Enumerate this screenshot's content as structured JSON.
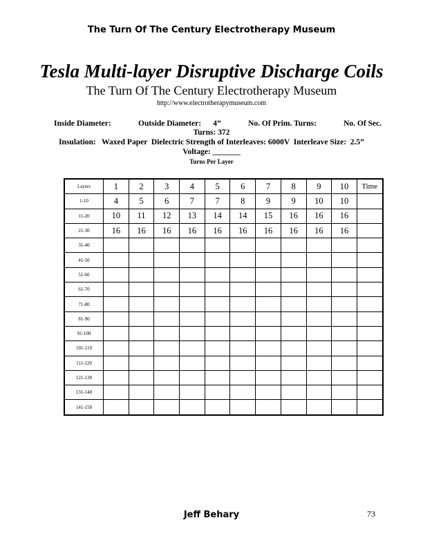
{
  "header": "The Turn Of The Century Electrotherapy Museum",
  "title": "Tesla Multi-layer Disruptive Discharge Coils",
  "subtitle": "The Turn Of The Century Electrotherapy Museum",
  "url": "http://www.electrotherapymuseum.com",
  "specs": {
    "inside_diameter": "Inside Diameter:",
    "outside_diameter": "Outside Diameter:      4”",
    "prim_turns": "No. Of Prim. Turns:",
    "sec_turns_a": "No. Of Sec.",
    "sec_turns_b": "Turns:  372",
    "insulation": "Insulation:   Waxed Paper  Dielectric Strength of Interleaves: 6000V  Interleave Size:  2.5”",
    "voltage": "Voltage: _______",
    "table_caption": "Turns Per Layer"
  },
  "table": {
    "header": [
      "Layers",
      "1",
      "2",
      "3",
      "4",
      "5",
      "6",
      "7",
      "8",
      "9",
      "10",
      "Time"
    ],
    "rows": [
      [
        "1-10",
        "4",
        "5",
        "6",
        "7",
        "7",
        "8",
        "9",
        "9",
        "10",
        "10",
        ""
      ],
      [
        "11-20",
        "10",
        "11",
        "12",
        "13",
        "14",
        "14",
        "15",
        "16",
        "16",
        "16",
        ""
      ],
      [
        "21-30",
        "16",
        "16",
        "16",
        "16",
        "16",
        "16",
        "16",
        "16",
        "16",
        "16",
        ""
      ],
      [
        "31-40",
        "",
        "",
        "",
        "",
        "",
        "",
        "",
        "",
        "",
        "",
        ""
      ],
      [
        "41-50",
        "",
        "",
        "",
        "",
        "",
        "",
        "",
        "",
        "",
        "",
        ""
      ],
      [
        "51-60",
        "",
        "",
        "",
        "",
        "",
        "",
        "",
        "",
        "",
        "",
        ""
      ],
      [
        "61-70",
        "",
        "",
        "",
        "",
        "",
        "",
        "",
        "",
        "",
        "",
        ""
      ],
      [
        "71-80",
        "",
        "",
        "",
        "",
        "",
        "",
        "",
        "",
        "",
        "",
        ""
      ],
      [
        "81-90",
        "",
        "",
        "",
        "",
        "",
        "",
        "",
        "",
        "",
        "",
        ""
      ],
      [
        "91-100",
        "",
        "",
        "",
        "",
        "",
        "",
        "",
        "",
        "",
        "",
        ""
      ],
      [
        "101-110",
        "",
        "",
        "",
        "",
        "",
        "",
        "",
        "",
        "",
        "",
        ""
      ],
      [
        "111-120",
        "",
        "",
        "",
        "",
        "",
        "",
        "",
        "",
        "",
        "",
        ""
      ],
      [
        "121-130",
        "",
        "",
        "",
        "",
        "",
        "",
        "",
        "",
        "",
        "",
        ""
      ],
      [
        "131-140",
        "",
        "",
        "",
        "",
        "",
        "",
        "",
        "",
        "",
        "",
        ""
      ],
      [
        "141-150",
        "",
        "",
        "",
        "",
        "",
        "",
        "",
        "",
        "",
        "",
        ""
      ]
    ]
  },
  "footer": {
    "author": "Jeff Behary",
    "page_number": "73"
  }
}
